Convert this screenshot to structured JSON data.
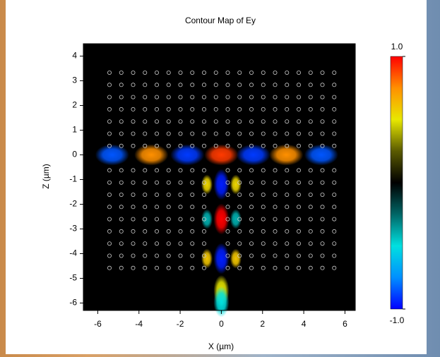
{
  "chart_data": {
    "type": "contour",
    "title": "Contour Map of Ey",
    "x_label": "X (µm)",
    "y_label": "Z (µm)",
    "xlim": [
      -6.7,
      6.5
    ],
    "xticks": [
      -6,
      -4,
      -2,
      0,
      2,
      4,
      6
    ],
    "ylim": [
      -6.3,
      4.5
    ],
    "yticks": [
      -6,
      -5,
      -4,
      -3,
      -2,
      -1,
      0,
      1,
      2,
      3,
      4
    ],
    "x": [
      -5.3,
      -3.4,
      -1.65,
      0,
      1.55,
      3.15,
      4.85,
      0,
      0,
      0,
      0,
      0,
      -0.7,
      0.7,
      -0.7,
      0.7,
      -0.7,
      0.7
    ],
    "y": [
      0,
      0,
      0,
      0,
      0,
      0,
      0,
      -1.2,
      -2.6,
      -4.2,
      -5.5,
      -5.95,
      -1.2,
      -1.2,
      -2.6,
      -2.6,
      -4.2,
      -4.2
    ],
    "values": [
      -0.85,
      0.75,
      -0.9,
      0.9,
      -0.9,
      0.75,
      -0.85,
      -0.95,
      1,
      -0.95,
      0.5,
      -0.5,
      0.55,
      0.55,
      -0.4,
      -0.4,
      0.6,
      0.6
    ],
    "colorbar": {
      "lim": [
        -1,
        1
      ],
      "ticks": [
        {
          "value": 1,
          "label": "1.0"
        },
        {
          "value": -1,
          "label": "-1.0"
        }
      ]
    },
    "colormap": [
      "#0000ff",
      "#0090ff",
      "#00e0e0",
      "#006666",
      "#000000",
      "#5a5a00",
      "#e8e800",
      "#ff9000",
      "#ff0000"
    ]
  }
}
